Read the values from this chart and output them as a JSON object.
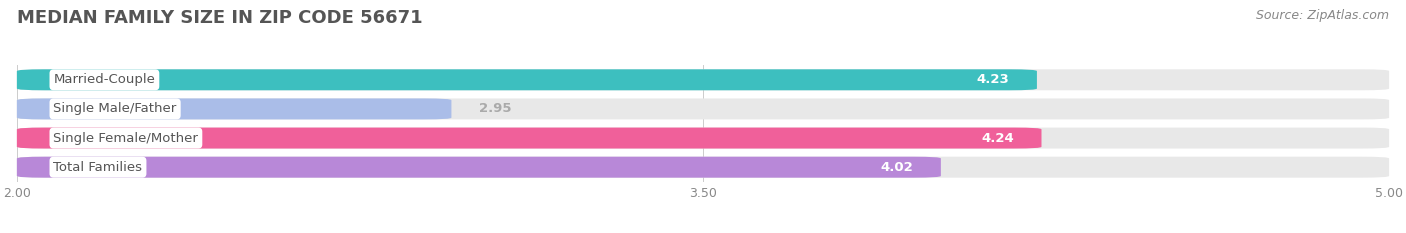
{
  "title": "MEDIAN FAMILY SIZE IN ZIP CODE 56671",
  "source": "Source: ZipAtlas.com",
  "categories": [
    "Married-Couple",
    "Single Male/Father",
    "Single Female/Mother",
    "Total Families"
  ],
  "values": [
    4.23,
    2.95,
    4.24,
    4.02
  ],
  "bar_colors": [
    "#3dbfbf",
    "#aabde8",
    "#f0609a",
    "#b888d8"
  ],
  "bar_bg_color": "#e8e8e8",
  "xlim": [
    2.0,
    5.0
  ],
  "xticks": [
    2.0,
    3.5,
    5.0
  ],
  "bar_height": 0.72,
  "bar_gap": 0.28,
  "fig_bg_color": "#ffffff",
  "title_color": "#555555",
  "title_fontsize": 13,
  "label_fontsize": 9.5,
  "tick_fontsize": 9,
  "source_fontsize": 9,
  "source_color": "#888888",
  "value_inside_color": "#ffffff",
  "value_outside_color": "#aaaaaa",
  "label_text_color": "#555555"
}
